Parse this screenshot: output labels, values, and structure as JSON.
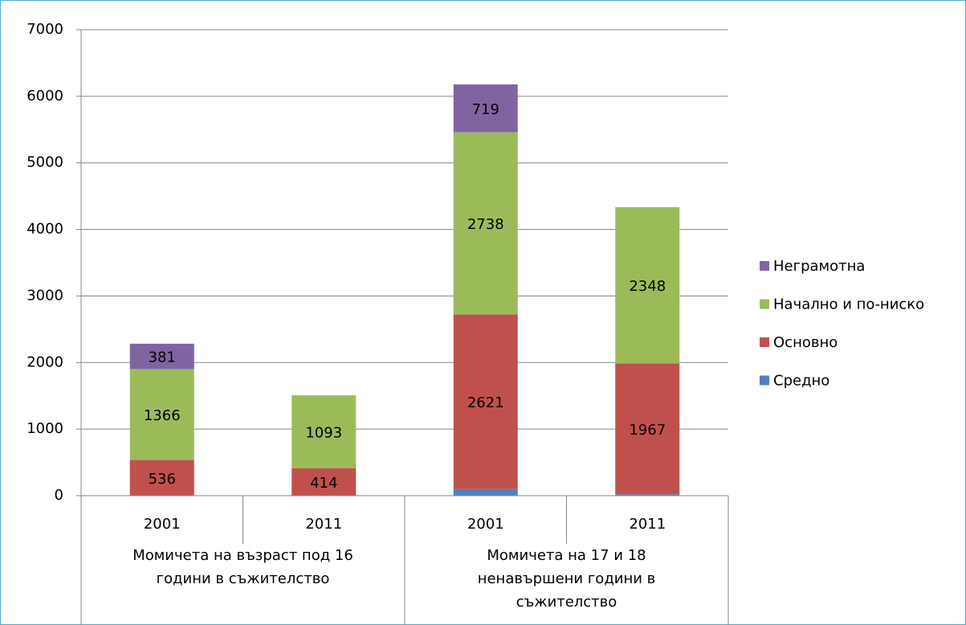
{
  "chart_data": {
    "type": "stacked_bar",
    "categories": [
      "2001",
      "2011",
      "2001",
      "2011"
    ],
    "groups": [
      {
        "label": "Момичета на възраст под 16 години в съжителство",
        "span": 2
      },
      {
        "label": "Момичета на 17 и 18 ненавършени години в съжителство",
        "span": 2
      }
    ],
    "series": [
      {
        "name": "Средно",
        "color": "#4f81bd",
        "values": [
          0,
          0,
          100,
          20
        ],
        "show_labels": false
      },
      {
        "name": "Основно",
        "color": "#c0504d",
        "values": [
          536,
          414,
          2621,
          1967
        ],
        "show_labels": true
      },
      {
        "name": "Начално и по-ниско",
        "color": "#9bbb59",
        "values": [
          1366,
          1093,
          2738,
          2348
        ],
        "show_labels": true
      },
      {
        "name": "Неграмотна",
        "color": "#8064a2",
        "values": [
          381,
          0,
          719,
          0
        ],
        "show_labels": true
      }
    ],
    "ylim": [
      0,
      7000
    ],
    "yticks": [
      0,
      1000,
      2000,
      3000,
      4000,
      5000,
      6000,
      7000
    ],
    "grid": true,
    "legend": "right"
  }
}
